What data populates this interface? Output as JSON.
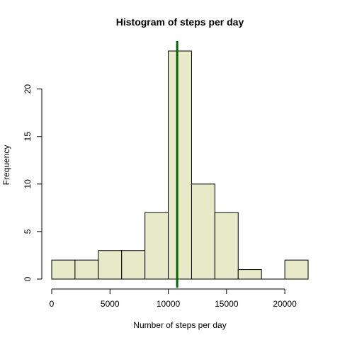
{
  "chart_data": {
    "type": "bar",
    "title": "Histogram of steps per day",
    "xlabel": "Number of steps per day",
    "ylabel": "Frequency",
    "bins": [
      {
        "start": 0,
        "end": 2000,
        "count": 2
      },
      {
        "start": 2000,
        "end": 4000,
        "count": 2
      },
      {
        "start": 4000,
        "end": 6000,
        "count": 3
      },
      {
        "start": 6000,
        "end": 8000,
        "count": 3
      },
      {
        "start": 8000,
        "end": 10000,
        "count": 7
      },
      {
        "start": 10000,
        "end": 12000,
        "count": 24
      },
      {
        "start": 12000,
        "end": 14000,
        "count": 10
      },
      {
        "start": 14000,
        "end": 16000,
        "count": 7
      },
      {
        "start": 16000,
        "end": 18000,
        "count": 1
      },
      {
        "start": 18000,
        "end": 20000,
        "count": 0
      },
      {
        "start": 20000,
        "end": 22000,
        "count": 2
      }
    ],
    "xlim": [
      0,
      22000
    ],
    "ylim": [
      0,
      24
    ],
    "x_ticks": [
      0,
      5000,
      10000,
      15000,
      20000
    ],
    "y_ticks": [
      0,
      5,
      10,
      15,
      20
    ],
    "vertical_line": {
      "x": 10766,
      "color": "#006400"
    },
    "bar_color": "#e8e9c9",
    "grid": false,
    "legend": "none"
  }
}
